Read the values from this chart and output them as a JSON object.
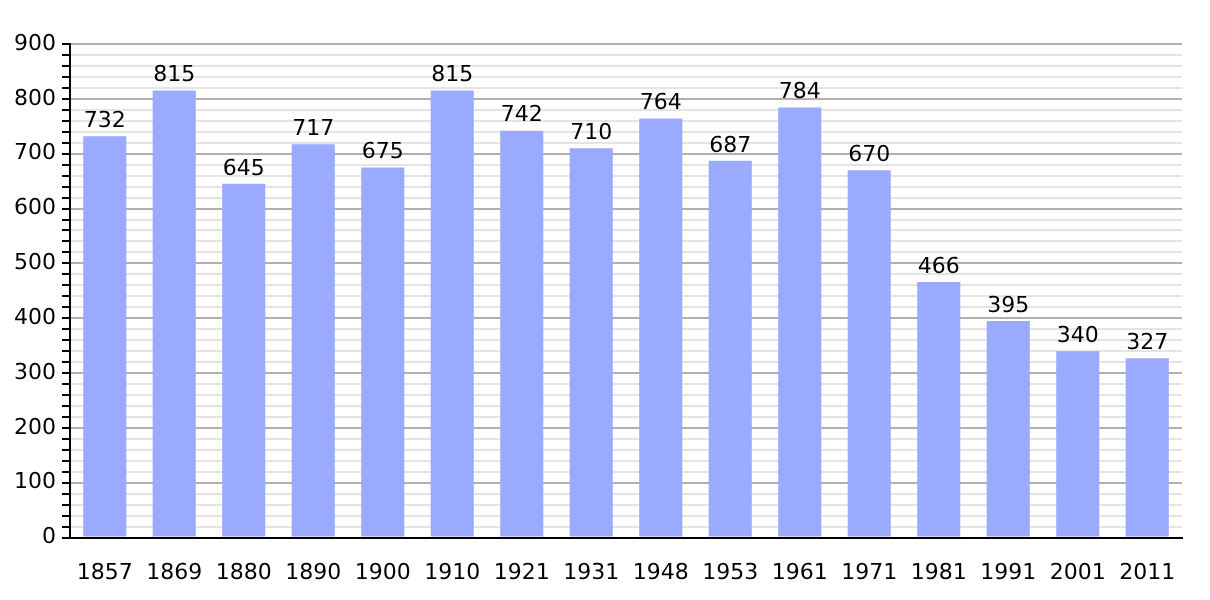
{
  "chart_data": {
    "type": "bar",
    "categories": [
      "1857",
      "1869",
      "1880",
      "1890",
      "1900",
      "1910",
      "1921",
      "1931",
      "1948",
      "1953",
      "1961",
      "1971",
      "1981",
      "1991",
      "2001",
      "2011"
    ],
    "values": [
      732,
      815,
      645,
      717,
      675,
      815,
      742,
      710,
      764,
      687,
      784,
      670,
      466,
      395,
      340,
      327
    ],
    "color": "#99aaff",
    "ylim": [
      0,
      900
    ],
    "yticks": [
      0,
      {
        "value": 20,
        "label": null
      },
      {
        "value": 40,
        "label": null
      },
      {
        "value": 60,
        "label": null
      },
      {
        "value": 80,
        "label": null
      },
      100,
      {
        "value": 120,
        "label": null
      },
      {
        "value": 140,
        "label": null
      },
      {
        "value": 160,
        "label": null
      },
      {
        "value": 180,
        "label": null
      },
      200,
      {
        "value": 220,
        "label": null
      },
      {
        "value": 240,
        "label": null
      },
      {
        "value": 260,
        "label": null
      },
      {
        "value": 280,
        "label": null
      },
      300,
      {
        "value": 320,
        "label": null
      },
      {
        "value": 340,
        "label": null
      },
      {
        "value": 360,
        "label": null
      },
      {
        "value": 380,
        "label": null
      },
      400,
      {
        "value": 420,
        "label": null
      },
      {
        "value": 440,
        "label": null
      },
      {
        "value": 460,
        "label": null
      },
      {
        "value": 480,
        "label": null
      },
      500,
      {
        "value": 520,
        "label": null
      },
      {
        "value": 540,
        "label": null
      },
      {
        "value": 560,
        "label": null
      },
      {
        "value": 580,
        "label": null
      },
      600,
      {
        "value": 620,
        "label": null
      },
      {
        "value": 640,
        "label": null
      },
      {
        "value": 660,
        "label": null
      },
      {
        "value": 680,
        "label": null
      },
      700,
      {
        "value": 720,
        "label": null
      },
      {
        "value": 740,
        "label": null
      },
      {
        "value": 760,
        "label": null
      },
      {
        "value": 780,
        "label": null
      },
      800,
      {
        "value": 820,
        "label": null
      },
      {
        "value": 840,
        "label": null
      },
      {
        "value": 860,
        "label": null
      },
      {
        "value": 880,
        "label": null
      },
      900
    ],
    "grid": true,
    "data_labels": true
  }
}
